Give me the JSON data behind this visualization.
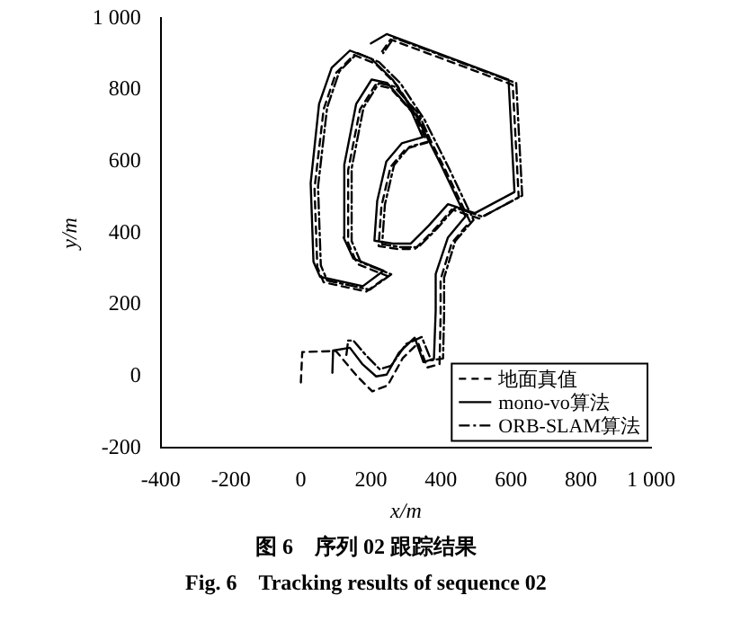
{
  "chart_data": {
    "type": "line",
    "xlabel": "x/m",
    "ylabel": "y/m",
    "xlim": [
      -400,
      1000
    ],
    "xticks": [
      -400,
      -200,
      0,
      200,
      400,
      600,
      800,
      {
        "value": 1000,
        "label": "1 000"
      }
    ],
    "ylim": [
      -200,
      1000
    ],
    "yticks": [
      -200,
      0,
      200,
      400,
      600,
      800,
      {
        "value": 1000,
        "label": "1 000"
      }
    ],
    "grid": false,
    "legend": "bottom right",
    "marker": "none",
    "annotations": [
      "图 6　序列 02 跟踪结果",
      "Fig. 6　Tracking results of sequence 02"
    ],
    "series": [
      {
        "name": "地面真值",
        "color": "#000000",
        "line_style": "dashed",
        "x": [
          0,
          4,
          100,
          161,
          204,
          248,
          291,
          335,
          361,
          396,
          399,
          399,
          431,
          483,
          413,
          343,
          274,
          213,
          152,
          100,
          65,
          39,
          47,
          65,
          187,
          248,
          161,
          135,
          135,
          169,
          213,
          256,
          326,
          361,
          300,
          256,
          230,
          222,
          274,
          326,
          378,
          431,
          509,
          622,
          605,
          256,
          225
        ],
        "values": [
          -17,
          68,
          71,
          0,
          -42,
          -25,
          51,
          93,
          25,
          34,
          169,
          271,
          373,
          432,
          576,
          712,
          814,
          873,
          898,
          847,
          746,
          525,
          305,
          263,
          237,
          280,
          314,
          373,
          576,
          746,
          814,
          805,
          729,
          653,
          636,
          585,
          475,
          364,
          356,
          356,
          407,
          466,
          441,
          500,
          814,
          941,
          898
        ]
      },
      {
        "name": "mono-vo算法",
        "color": "#000000",
        "line_style": "solid",
        "x": [
          90,
          92,
          140,
          175,
          215,
          245,
          280,
          325,
          350,
          380,
          385,
          385,
          420,
          470,
          400,
          330,
          262,
          200,
          140,
          88,
          52,
          28,
          36,
          55,
          177,
          236,
          150,
          122,
          124,
          158,
          202,
          246,
          314,
          348,
          288,
          244,
          218,
          210,
          262,
          314,
          366,
          420,
          497,
          610,
          593,
          245,
          200
        ],
        "values": [
          10,
          72,
          80,
          35,
          0,
          5,
          66,
          108,
          40,
          49,
          184,
          286,
          388,
          447,
          591,
          727,
          829,
          888,
          910,
          862,
          761,
          540,
          320,
          278,
          252,
          295,
          329,
          388,
          591,
          761,
          829,
          820,
          744,
          668,
          651,
          600,
          490,
          379,
          371,
          371,
          422,
          481,
          456,
          515,
          829,
          956,
          930
        ]
      },
      {
        "name": "ORB-SLAM算法",
        "color": "#000000",
        "line_style": "dashdot",
        "x": [
          130,
          135,
          150,
          185,
          225,
          258,
          300,
          345,
          372,
          406,
          409,
          409,
          441,
          493,
          423,
          353,
          284,
          223,
          162,
          110,
          75,
          49,
          57,
          75,
          197,
          258,
          171,
          145,
          145,
          179,
          223,
          266,
          336,
          371,
          310,
          266,
          240,
          232,
          284,
          336,
          388,
          441,
          519,
          632,
          615,
          266,
          235
        ],
        "values": [
          60,
          100,
          100,
          60,
          20,
          30,
          90,
          110,
          45,
          50,
          174,
          276,
          378,
          437,
          581,
          717,
          819,
          878,
          903,
          852,
          751,
          530,
          310,
          268,
          242,
          285,
          319,
          378,
          581,
          751,
          819,
          810,
          734,
          658,
          641,
          590,
          480,
          369,
          361,
          361,
          412,
          471,
          446,
          505,
          819,
          946,
          903
        ]
      }
    ]
  }
}
